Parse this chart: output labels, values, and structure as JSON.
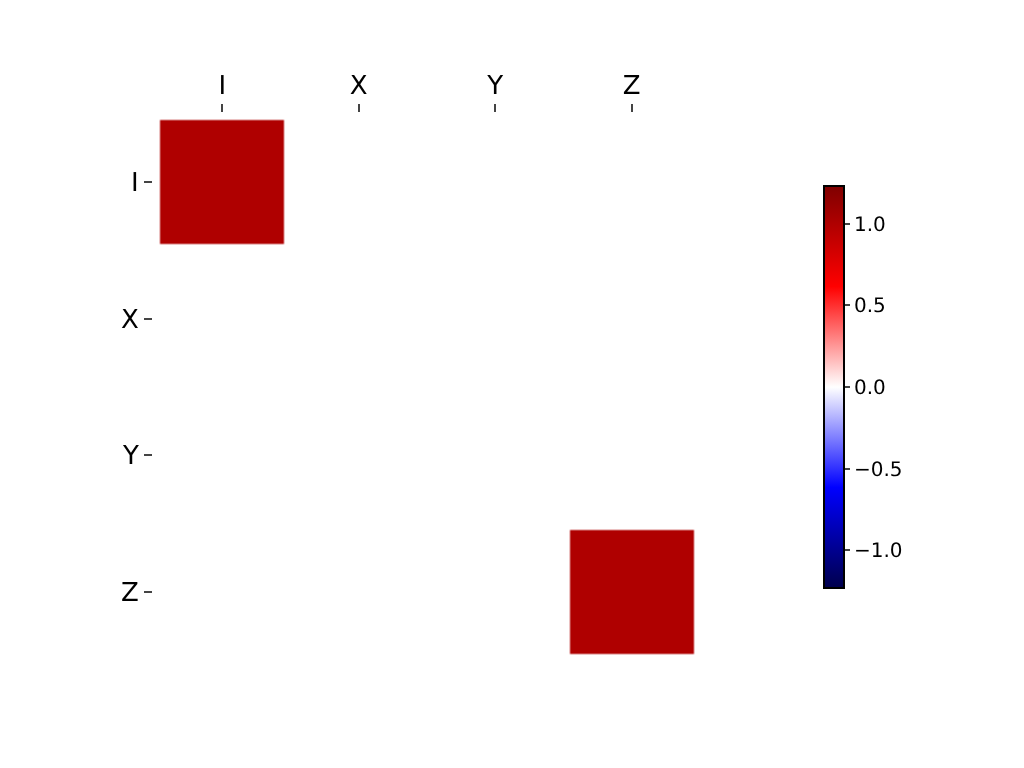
{
  "chart_data": {
    "type": "heatmap",
    "categories": [
      "I",
      "X",
      "Y",
      "Z"
    ],
    "y_categories": [
      "I",
      "X",
      "Y",
      "Z"
    ],
    "cells": [
      [
        1,
        0,
        0,
        0
      ],
      [
        0,
        0,
        0,
        0
      ],
      [
        0,
        0,
        0,
        0
      ],
      [
        0,
        0,
        0,
        1
      ]
    ],
    "clim": [
      -1.23,
      1.23
    ],
    "cticks": [
      {
        "value": 1,
        "label": "1.0"
      },
      {
        "value": 0.5,
        "label": "0.5"
      },
      {
        "value": 0,
        "label": "0.0"
      },
      {
        "value": -0.5,
        "label": "−0.5"
      },
      {
        "value": -1,
        "label": "−1.0"
      }
    ]
  }
}
